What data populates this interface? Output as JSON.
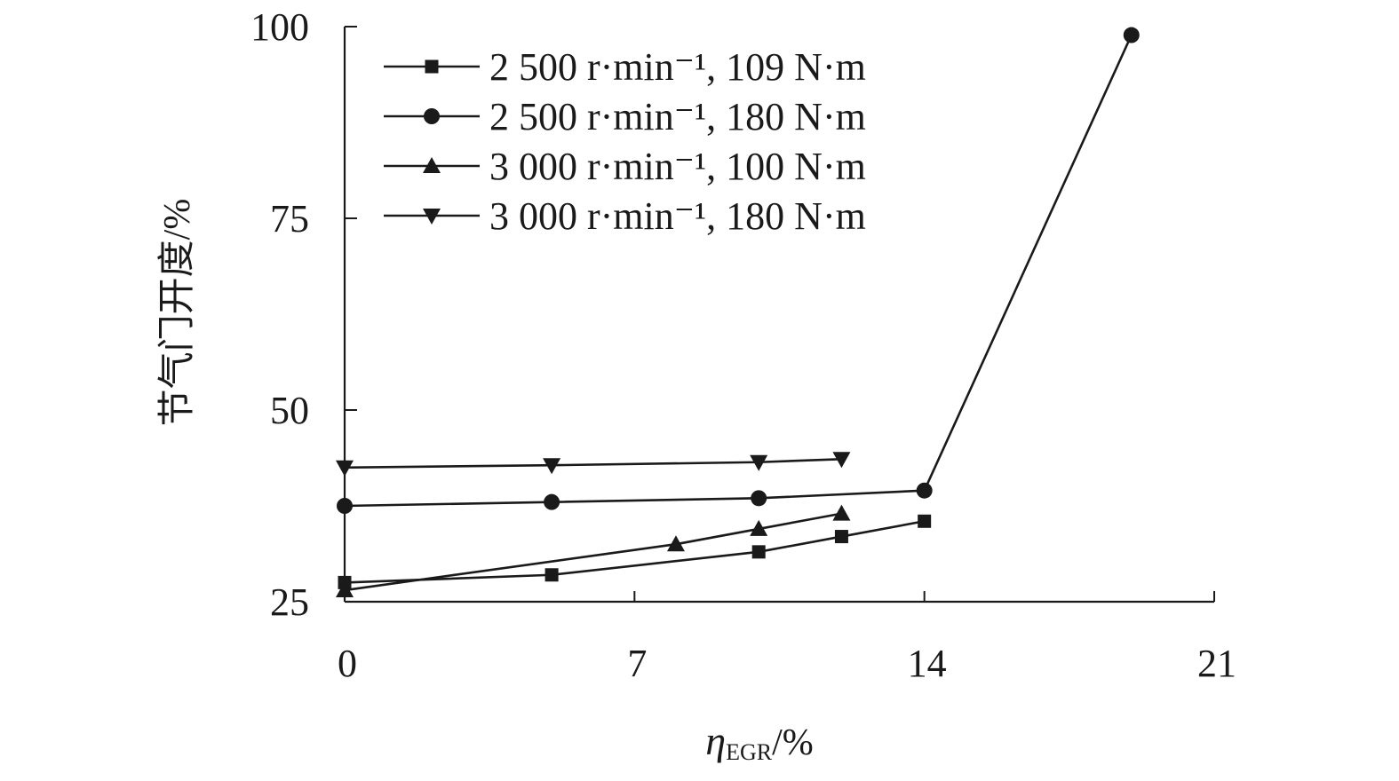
{
  "chart_data": {
    "type": "line",
    "xlabel": "ηEGR/%",
    "xlabel_main": "η",
    "xlabel_sub": "EGR",
    "xlabel_unit": "/%",
    "ylabel": "节气门开度/%",
    "xlim": [
      0,
      21
    ],
    "ylim": [
      25,
      100
    ],
    "x_ticks": [
      0,
      7,
      14,
      21
    ],
    "y_ticks": [
      25,
      50,
      75,
      100
    ],
    "x_tick_labels": [
      "0",
      "7",
      "14",
      "21"
    ],
    "y_tick_labels": [
      "25",
      "50",
      "75",
      "100"
    ],
    "grid": false,
    "legend_position": "top-left",
    "series": [
      {
        "name": "2 500 r·min⁻¹, 109 N·m",
        "marker": "square",
        "x": [
          0,
          5,
          10,
          12,
          14
        ],
        "y": [
          27.5,
          28.5,
          31.5,
          33.5,
          35.5
        ]
      },
      {
        "name": "2 500 r·min⁻¹, 180 N·m",
        "marker": "circle",
        "x": [
          0,
          5,
          10,
          14,
          19
        ],
        "y": [
          37.5,
          38.0,
          38.5,
          39.5,
          98.9
        ]
      },
      {
        "name": "3 000 r·min⁻¹, 100 N·m",
        "marker": "triangle-up",
        "x": [
          0,
          8,
          10,
          12
        ],
        "y": [
          26.5,
          32.5,
          34.5,
          36.5
        ]
      },
      {
        "name": "3 000 r·min⁻¹, 180 N·m",
        "marker": "triangle-down",
        "x": [
          0,
          5,
          10,
          12
        ],
        "y": [
          42.5,
          42.8,
          43.2,
          43.6
        ]
      }
    ]
  }
}
